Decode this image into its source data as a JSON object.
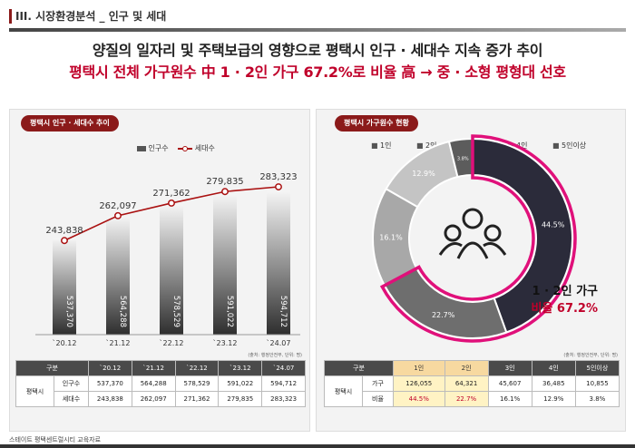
{
  "section_title": "III. 시장환경분석 _ 인구 및 세대",
  "headline": {
    "line1": "양질의 일자리 및 주택보급의 영향으로 평택시 인구 · 세대수 지속 증가 추이",
    "line2": "평택시 전체 가구원수 中 1 · 2인 가구 67.2%로 비율 高 → 중 · 소형 평형대 선호"
  },
  "left_panel": {
    "tag": "평택시 인구 · 세대수 추이",
    "legend_pop": "인구수",
    "legend_hh": "세대수",
    "source": "(출처: 행정안전부, 단위: 명)"
  },
  "right_panel": {
    "tag": "평택시 가구원수 현황",
    "source": "(출처: 행정안전부, 단위: 명)",
    "callout_line1": "1 · 2인 가구",
    "callout_line2": "비율 67.2%",
    "icon": "people-group-icon"
  },
  "chart_data": [
    {
      "type": "bar+line",
      "title": "평택시 인구 · 세대수 추이",
      "categories": [
        "`20.12",
        "`21.12",
        "`22.12",
        "`23.12",
        "`24.07"
      ],
      "series": [
        {
          "name": "인구수",
          "type": "bar",
          "values": [
            537370,
            564288,
            578529,
            591022,
            594712
          ]
        },
        {
          "name": "세대수",
          "type": "line",
          "values": [
            243838,
            262097,
            271362,
            279835,
            283323
          ]
        }
      ]
    },
    {
      "type": "pie",
      "title": "평택시 가구원수 현황",
      "categories": [
        "1인",
        "2인",
        "3인",
        "4인",
        "5인이상"
      ],
      "values": [
        44.5,
        22.7,
        16.1,
        12.9,
        3.8
      ],
      "labels": [
        "44.5%",
        "22.7%",
        "16.1%",
        "12.9%",
        "3.8%"
      ],
      "colors": [
        "#2b2b3a",
        "#6e6e6e",
        "#a8a8a8",
        "#c4c4c4",
        "#5c5c5c"
      ]
    }
  ],
  "left_table": {
    "headers": [
      "구분",
      "",
      "`20.12",
      "`21.12",
      "`22.12",
      "`23.12",
      "`24.07"
    ],
    "group": "평택시",
    "rows": [
      {
        "label": "인구수",
        "values": [
          "537,370",
          "564,288",
          "578,529",
          "591,022",
          "594,712"
        ]
      },
      {
        "label": "세대수",
        "values": [
          "243,838",
          "262,097",
          "271,362",
          "279,835",
          "283,323"
        ]
      }
    ]
  },
  "right_table": {
    "headers": [
      "구분",
      "",
      "1인",
      "2인",
      "3인",
      "4인",
      "5인이상"
    ],
    "group": "평택시",
    "rows": [
      {
        "label": "가구",
        "values": [
          "126,055",
          "64,321",
          "45,607",
          "36,485",
          "10,855"
        ]
      },
      {
        "label": "비율",
        "values": [
          "44.5%",
          "22.7%",
          "16.1%",
          "12.9%",
          "3.8%"
        ]
      }
    ]
  },
  "footer_note": "스테이트 평택센트럴시티 교육자료"
}
